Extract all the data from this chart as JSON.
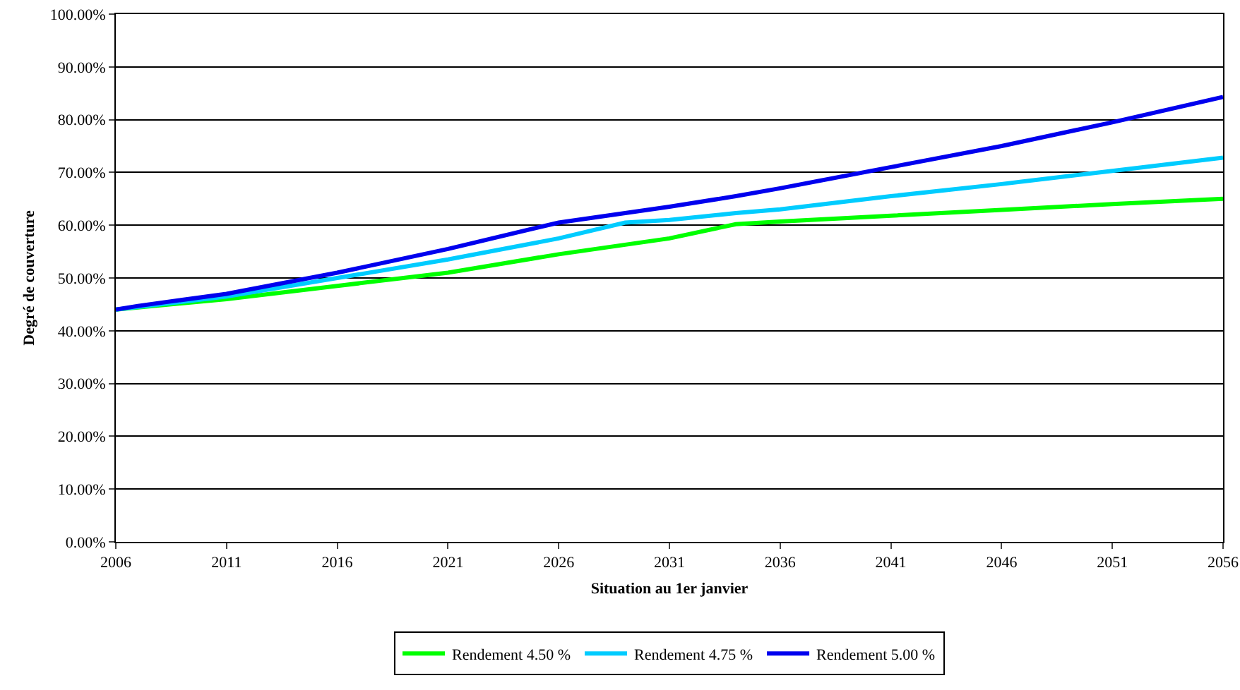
{
  "chart_data": {
    "type": "line",
    "xlabel": "Situation au 1er janvier",
    "ylabel": "Degré de couverture",
    "x": [
      2006,
      2007,
      2011,
      2016,
      2021,
      2026,
      2029,
      2031,
      2034,
      2036,
      2041,
      2046,
      2051,
      2056
    ],
    "series": [
      {
        "name": "Rendement 4.50 %",
        "color": "#00ff00",
        "values": [
          44.0,
          44.4,
          46.0,
          48.5,
          51.0,
          54.5,
          56.3,
          57.5,
          60.2,
          60.7,
          61.8,
          62.9,
          64.0,
          65.0
        ]
      },
      {
        "name": "Rendement 4.75 %",
        "color": "#00ccff",
        "values": [
          44.0,
          44.5,
          46.5,
          50.0,
          53.5,
          57.5,
          60.5,
          61.0,
          62.3,
          63.0,
          65.5,
          67.8,
          70.3,
          72.8
        ]
      },
      {
        "name": "Rendement 5.00 %",
        "color": "#0000ee",
        "values": [
          44.0,
          44.7,
          47.0,
          51.0,
          55.5,
          60.5,
          62.3,
          63.5,
          65.5,
          67.0,
          71.0,
          75.0,
          79.5,
          84.3
        ]
      }
    ],
    "xlim": [
      2006,
      2056
    ],
    "xticks": [
      2006,
      2011,
      2016,
      2021,
      2026,
      2031,
      2036,
      2041,
      2046,
      2051,
      2056
    ],
    "ylim": [
      0,
      100
    ],
    "yticks": [
      {
        "value": 0,
        "label": "0.00%"
      },
      {
        "value": 10,
        "label": "10.00%"
      },
      {
        "value": 20,
        "label": "20.00%"
      },
      {
        "value": 30,
        "label": "30.00%"
      },
      {
        "value": 40,
        "label": "40.00%"
      },
      {
        "value": 50,
        "label": "50.00%"
      },
      {
        "value": 60,
        "label": "60.00%"
      },
      {
        "value": 70,
        "label": "70.00%"
      },
      {
        "value": 80,
        "label": "80.00%"
      },
      {
        "value": 90,
        "label": "90.00%"
      },
      {
        "value": 100,
        "label": "100.00%"
      }
    ],
    "grid": "y",
    "legend": "bottom",
    "marker": "none",
    "line_style": "solid"
  }
}
